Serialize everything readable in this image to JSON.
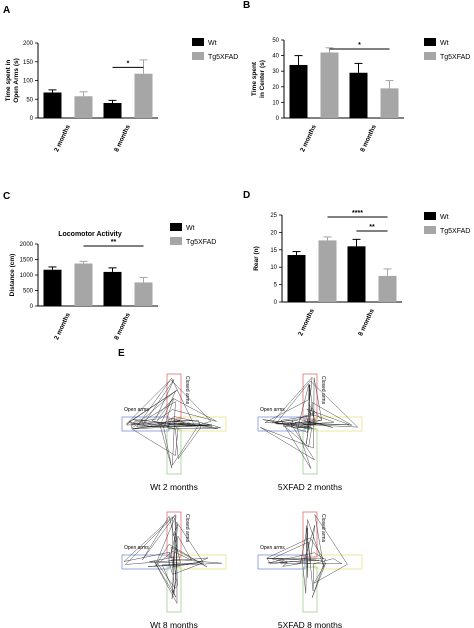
{
  "colors": {
    "wt": "#000000",
    "tg": "#a6a6a6"
  },
  "chart_data": [
    {
      "panel": "A",
      "type": "bar",
      "title": "",
      "ylabel": "Time spent in Open Arms (s)",
      "ylabel_lines": [
        "Time spent in",
        "Open Arms (s)"
      ],
      "ylim": [
        0,
        200
      ],
      "yticks": [
        0,
        50,
        100,
        150,
        200
      ],
      "categories": [
        "2 months",
        "8 months"
      ],
      "series": [
        {
          "name": "Wt",
          "values": [
            68,
            40
          ],
          "errors": [
            7,
            7
          ]
        },
        {
          "name": "Tg5XFAD",
          "values": [
            58,
            118
          ],
          "errors": [
            12,
            37
          ]
        }
      ],
      "significance": [
        {
          "label": "*",
          "between": "8 months: Wt vs Tg5XFAD"
        }
      ]
    },
    {
      "panel": "B",
      "type": "bar",
      "title": "",
      "ylabel": "Time spent in Center (s)",
      "ylabel_lines": [
        "Time spent",
        "in Center (s)"
      ],
      "ylim": [
        0,
        50
      ],
      "yticks": [
        0,
        10,
        20,
        30,
        40,
        50
      ],
      "categories": [
        "2 months",
        "8 months"
      ],
      "series": [
        {
          "name": "Wt",
          "values": [
            34,
            29
          ],
          "errors": [
            6,
            6
          ]
        },
        {
          "name": "Tg5XFAD",
          "values": [
            42,
            19
          ],
          "errors": [
            3,
            5
          ]
        }
      ],
      "significance": [
        {
          "label": "*",
          "between": "Tg5XFAD: 2 months vs 8 months"
        }
      ]
    },
    {
      "panel": "C",
      "type": "bar",
      "title": "Locomotor Activity",
      "ylabel": "Distance (cm)",
      "ylabel_lines": [
        "Distance (cm)"
      ],
      "ylim": [
        0,
        2000
      ],
      "yticks": [
        0,
        500,
        1000,
        1500,
        2000
      ],
      "categories": [
        "2 months",
        "8 months"
      ],
      "series": [
        {
          "name": "Wt",
          "values": [
            1170,
            1100
          ],
          "errors": [
            90,
            130
          ]
        },
        {
          "name": "Tg5XFAD",
          "values": [
            1370,
            760
          ],
          "errors": [
            70,
            160
          ]
        }
      ],
      "significance": [
        {
          "label": "**",
          "between": "Tg5XFAD: 2 months vs 8 months"
        }
      ]
    },
    {
      "panel": "D",
      "type": "bar",
      "title": "",
      "ylabel": "Rear (n)",
      "ylabel_lines": [
        "Rear (n)"
      ],
      "ylim": [
        0,
        25
      ],
      "yticks": [
        0,
        5,
        10,
        15,
        20,
        25
      ],
      "categories": [
        "2 months",
        "8 months"
      ],
      "series": [
        {
          "name": "Wt",
          "values": [
            13.5,
            16
          ],
          "errors": [
            1,
            2
          ]
        },
        {
          "name": "Tg5XFAD",
          "values": [
            17.7,
            7.5
          ],
          "errors": [
            1,
            2
          ]
        }
      ],
      "significance": [
        {
          "label": "****",
          "between": "Tg5XFAD: 2 months vs 8 months"
        },
        {
          "label": "**",
          "between": "8 months: Wt vs Tg5XFAD"
        }
      ]
    }
  ],
  "panel_e": {
    "label": "E",
    "open_arms_label": "Open arms",
    "closed_arms_label": "Closed arms",
    "mazes": [
      {
        "caption": "Wt 2 months"
      },
      {
        "caption": "5XFAD 2 months"
      },
      {
        "caption": "Wt 8 months"
      },
      {
        "caption": "5XFAD 8 months"
      }
    ]
  }
}
